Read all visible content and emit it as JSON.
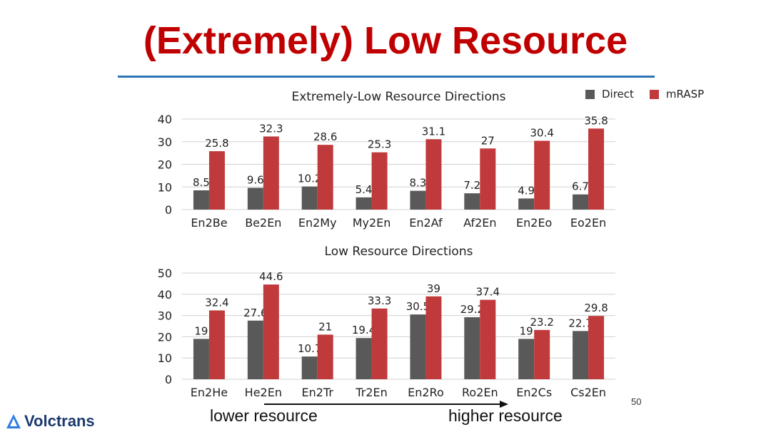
{
  "slide": {
    "title": "(Extremely) Low Resource",
    "page_number": "50",
    "logo_text": "Volctrans",
    "arrow_left_label": "lower resource",
    "arrow_right_label": "higher resource"
  },
  "legend": [
    {
      "name": "Direct",
      "color": "#595959"
    },
    {
      "name": "mRASP",
      "color": "#c0393b"
    }
  ],
  "colors": {
    "direct": "#595959",
    "mrasp": "#c0393b",
    "grid": "#d0d0d0",
    "title": "#c00000",
    "rule": "#2e75b6"
  },
  "chart_data": [
    {
      "type": "bar",
      "title": "Extremely-Low Resource Directions",
      "categories": [
        "En2Be",
        "Be2En",
        "En2My",
        "My2En",
        "En2Af",
        "Af2En",
        "En2Eo",
        "Eo2En"
      ],
      "series": [
        {
          "name": "Direct",
          "values": [
            8.5,
            9.6,
            10.2,
            5.4,
            8.3,
            7.2,
            4.9,
            6.7
          ]
        },
        {
          "name": "mRASP",
          "values": [
            25.8,
            32.3,
            28.6,
            25.3,
            31.1,
            27,
            30.4,
            35.8
          ]
        }
      ],
      "ylim": [
        0,
        40
      ],
      "yticks": [
        0,
        10,
        20,
        30,
        40
      ],
      "grid": true
    },
    {
      "type": "bar",
      "title": "Low Resource Directions",
      "categories": [
        "En2He",
        "He2En",
        "En2Tr",
        "Tr2En",
        "En2Ro",
        "Ro2En",
        "En2Cs",
        "Cs2En"
      ],
      "series": [
        {
          "name": "Direct",
          "values": [
            19,
            27.6,
            10.7,
            19.4,
            30.5,
            29.2,
            19,
            22.7
          ]
        },
        {
          "name": "mRASP",
          "values": [
            32.4,
            44.6,
            21,
            33.3,
            39,
            37.4,
            23.2,
            29.8
          ]
        }
      ],
      "ylim": [
        0,
        50
      ],
      "yticks": [
        0,
        10,
        20,
        30,
        40,
        50
      ],
      "grid": true
    }
  ]
}
